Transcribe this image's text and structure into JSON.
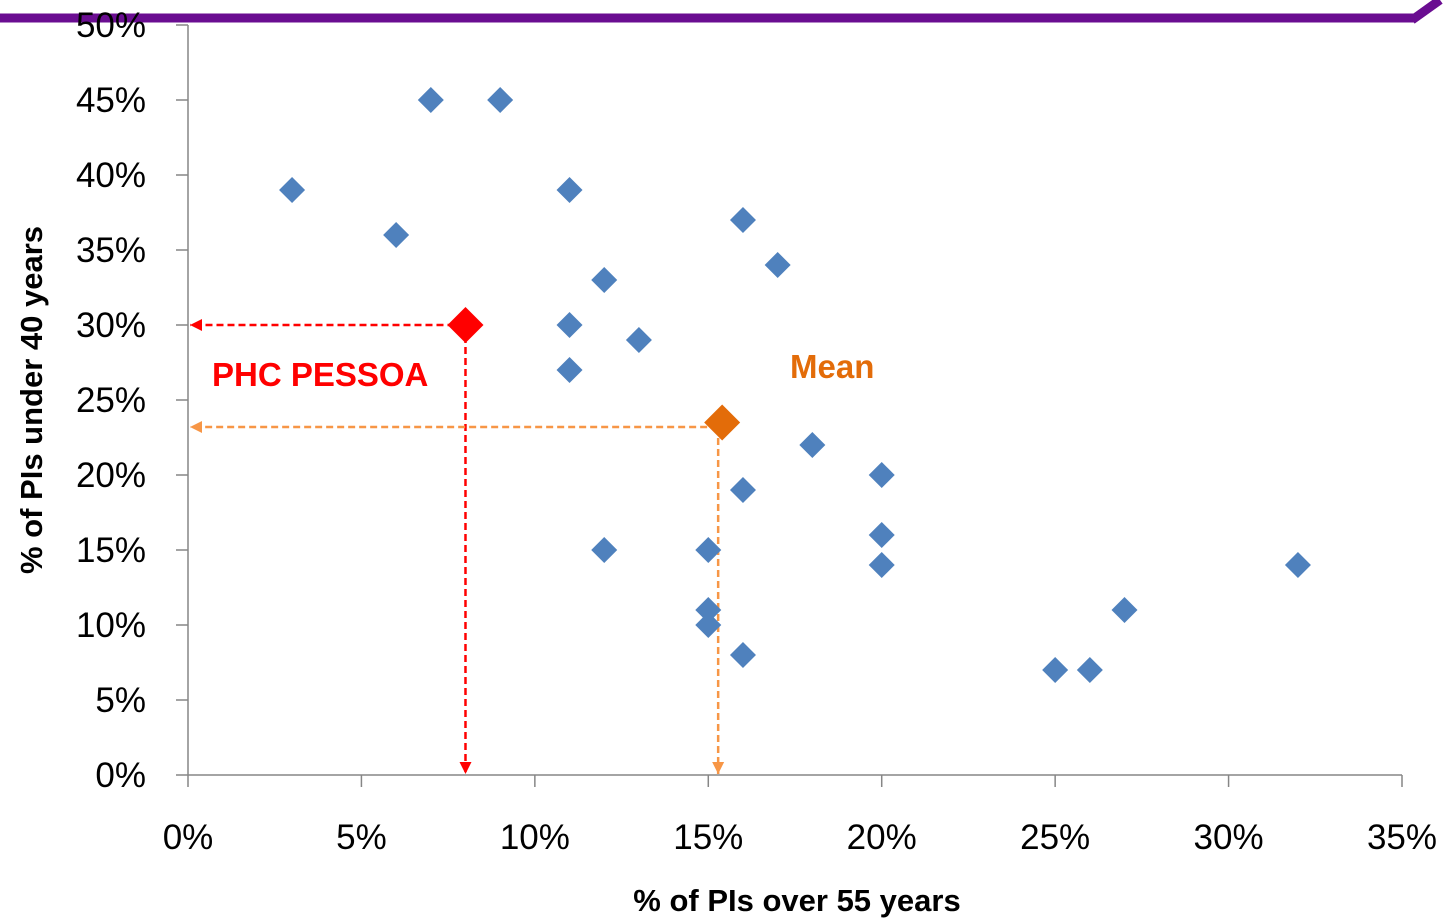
{
  "chart_data": {
    "type": "scatter",
    "title": "",
    "xlabel": "% of PIs over 55 years",
    "ylabel": "% of PIs under 40 years",
    "xlim": [
      0,
      35
    ],
    "ylim": [
      0,
      50
    ],
    "x_ticks": [
      "0%",
      "5%",
      "10%",
      "15%",
      "20%",
      "25%",
      "30%",
      "35%"
    ],
    "y_ticks": [
      "0%",
      "5%",
      "10%",
      "15%",
      "20%",
      "25%",
      "30%",
      "35%",
      "40%",
      "45%",
      "50%"
    ],
    "grid": false,
    "legend": "none",
    "colors": {
      "points": "#4F81BD",
      "highlight": "#FF0000",
      "mean": "#E36C09",
      "mean_guide": "#F79646",
      "banner": "#6A0D91"
    },
    "series": [
      {
        "x": [
          3,
          6,
          7,
          9,
          11,
          11,
          11,
          12,
          12,
          13,
          15,
          15,
          15,
          16,
          16,
          16,
          17,
          18,
          20,
          20,
          20,
          25,
          26,
          27,
          32
        ],
        "y": [
          39,
          36,
          45,
          45,
          39,
          30,
          27,
          33,
          15,
          29,
          15,
          11,
          10,
          37,
          19,
          8,
          34,
          22,
          20,
          16,
          14,
          7,
          7,
          11,
          14
        ]
      }
    ],
    "annotations": [
      {
        "label": "PHC PESSOA",
        "x": 8,
        "y": 30,
        "color": "#FF0000"
      },
      {
        "label": "Mean",
        "x": 15.4,
        "y": 23.5,
        "color": "#E36C09"
      }
    ]
  }
}
